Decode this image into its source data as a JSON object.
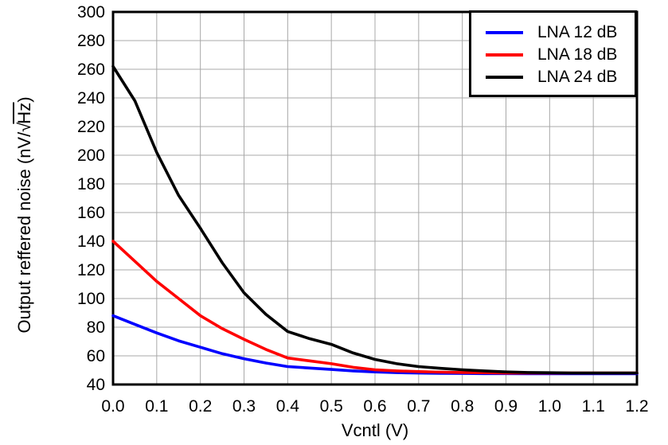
{
  "chart": {
    "ylabel_parts": {
      "prefix": "Output reffered noise  (nV/",
      "radical": "√",
      "radicand": "Hz",
      "suffix": ")"
    }
  },
  "chart_data": {
    "type": "line",
    "title": "",
    "xlabel": "Vcntl (V)",
    "ylabel": "Output reffered noise (nV/√Hz)",
    "xlim": [
      0.0,
      1.2
    ],
    "ylim": [
      40,
      300
    ],
    "xtick_step": 0.1,
    "ytick_step": 20,
    "grid": true,
    "grid_color": "#a8a8a8",
    "legend_position": "top-right",
    "x": [
      0.0,
      0.05,
      0.1,
      0.15,
      0.2,
      0.25,
      0.3,
      0.35,
      0.4,
      0.45,
      0.5,
      0.55,
      0.6,
      0.65,
      0.7,
      0.75,
      0.8,
      0.85,
      0.9,
      0.95,
      1.0,
      1.05,
      1.1,
      1.15,
      1.2
    ],
    "series": [
      {
        "name": "LNA 12 dB",
        "color": "#0000ff",
        "values": [
          88,
          82,
          76,
          70.5,
          66,
          61.5,
          58,
          55,
          52.5,
          51.5,
          50.5,
          49.5,
          48.8,
          48.3,
          48,
          47.8,
          47.7,
          47.6,
          47.6,
          47.5,
          47.5,
          47.5,
          47.5,
          47.5,
          47.5
        ]
      },
      {
        "name": "LNA 18 dB",
        "color": "#ff0000",
        "values": [
          140,
          126,
          112,
          100,
          88,
          79,
          71.5,
          64.5,
          58.5,
          56.5,
          54.5,
          52,
          50.3,
          49.5,
          49,
          48.6,
          48.4,
          48.2,
          48,
          48,
          48,
          48,
          48,
          48,
          48
        ]
      },
      {
        "name": "LNA 24 dB",
        "color": "#000000",
        "values": [
          262,
          238,
          202,
          172,
          149,
          125,
          104,
          89,
          77,
          72,
          68,
          62,
          57.5,
          54.5,
          52.5,
          51.3,
          50.3,
          49.5,
          48.8,
          48.4,
          48.2,
          48,
          48,
          48,
          48
        ]
      }
    ]
  }
}
